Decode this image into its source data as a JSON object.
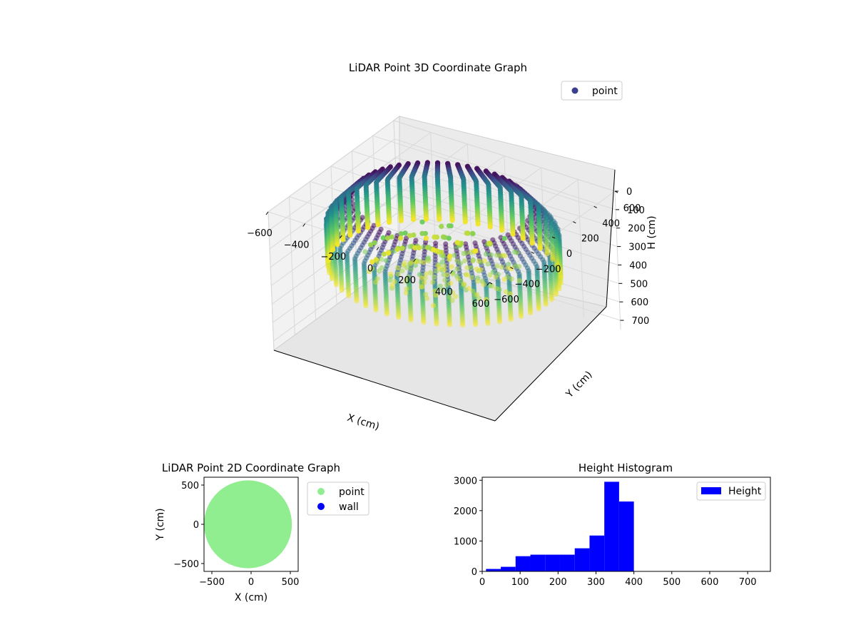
{
  "chart_data": [
    {
      "type": "scatter",
      "projection": "3d",
      "title": "LiDAR Point 3D Coordinate Graph",
      "xlabel": "X (cm)",
      "ylabel": "Y (cm)",
      "zlabel": "H (cm)",
      "xlim": [
        -600,
        600
      ],
      "ylim": [
        -600,
        600
      ],
      "zlim": [
        0,
        750
      ],
      "z_inverted": true,
      "xticks": [
        "−600",
        "−400",
        "−200",
        "0",
        "200",
        "400",
        "600"
      ],
      "yticks": [
        "−600",
        "−400",
        "−200",
        "0",
        "200",
        "400",
        "600"
      ],
      "zticks": [
        "0",
        "100",
        "200",
        "300",
        "400",
        "500",
        "600",
        "700"
      ],
      "legend": {
        "position": "top-right",
        "entries": [
          "point"
        ]
      },
      "colormap": "viridis",
      "description": "Approximately 10,000 points forming a cylindrical room scan; wall points near radius 550 cm with heights 0–390 cm.",
      "series": [
        {
          "name": "point",
          "shape": "cylinder",
          "radius": 550,
          "hmin": 0,
          "hmax": 390
        }
      ]
    },
    {
      "type": "scatter",
      "title": "LiDAR Point 2D Coordinate Graph",
      "xlabel": "X (cm)",
      "ylabel": "Y (cm)",
      "xlim": [
        -600,
        600
      ],
      "ylim": [
        -600,
        600
      ],
      "xticks": [
        "−500",
        "0",
        "500"
      ],
      "yticks": [
        "−500",
        "0",
        "500"
      ],
      "legend": {
        "position": "outside-right",
        "entries": [
          "point",
          "wall"
        ]
      },
      "series": [
        {
          "name": "point",
          "color": "#90ee90",
          "shape": "disk",
          "radius": 560,
          "center": [
            -40,
            0
          ]
        },
        {
          "name": "wall",
          "color": "#0000ff"
        }
      ]
    },
    {
      "type": "bar",
      "subtype": "histogram",
      "title": "Height Histogram",
      "xlabel": "",
      "ylabel": "",
      "xlim": [
        0,
        760
      ],
      "ylim": [
        0,
        3100
      ],
      "xticks": [
        "0",
        "100",
        "200",
        "300",
        "400",
        "500",
        "600",
        "700"
      ],
      "yticks": [
        "0",
        "1000",
        "2000",
        "3000"
      ],
      "legend": {
        "position": "top-right",
        "entries": [
          "Height"
        ]
      },
      "bin_edges": [
        10,
        49,
        88,
        127,
        166,
        205,
        244,
        283,
        322,
        361,
        400
      ],
      "counts": [
        80,
        150,
        500,
        550,
        550,
        550,
        760,
        1180,
        2950,
        2300
      ],
      "series": [
        {
          "name": "Height",
          "color": "#0000ff"
        }
      ]
    }
  ],
  "colors": {
    "viridis": [
      "#440154",
      "#3b528b",
      "#21918c",
      "#5ec962",
      "#fde725"
    ],
    "point2d": "#90ee90",
    "wall": "#0000ff",
    "hist": "#0000ff"
  }
}
